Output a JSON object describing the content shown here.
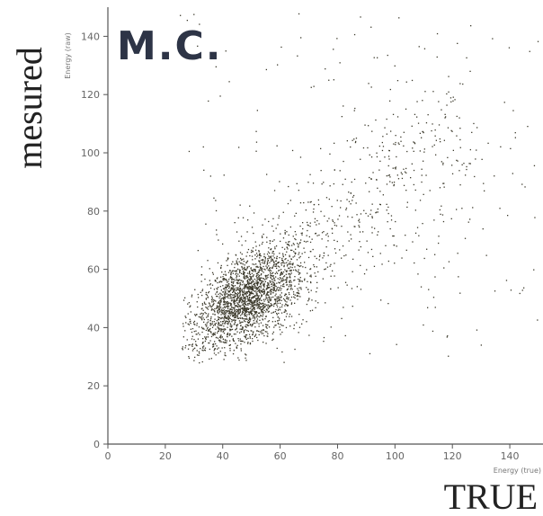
{
  "chart_data": {
    "type": "scatter",
    "title": "M.C.",
    "xlabel": "TRUE",
    "ylabel": "mesured",
    "x_axis_small_label": "Energy (true)",
    "y_axis_small_label": "Energy (raw)",
    "xlim": [
      0,
      150
    ],
    "ylim": [
      0,
      150
    ],
    "x_ticks": [
      0,
      20,
      40,
      60,
      80,
      100,
      120,
      140
    ],
    "y_ticks": [
      0,
      20,
      40,
      60,
      80,
      100,
      120,
      140
    ],
    "grid": false,
    "legend": "none",
    "point_color": "#3c3a2c",
    "distribution": {
      "core_center": [
        48,
        50
      ],
      "core_std": [
        9,
        9
      ],
      "correlation": 0.55,
      "range_x": [
        25,
        150
      ],
      "range_y": [
        28,
        150
      ],
      "sampled_points": 3000,
      "description_note": "dense blob near (45-55, 45-55) elongated toward upper right with sparse tail to (100+, 100+)"
    }
  }
}
